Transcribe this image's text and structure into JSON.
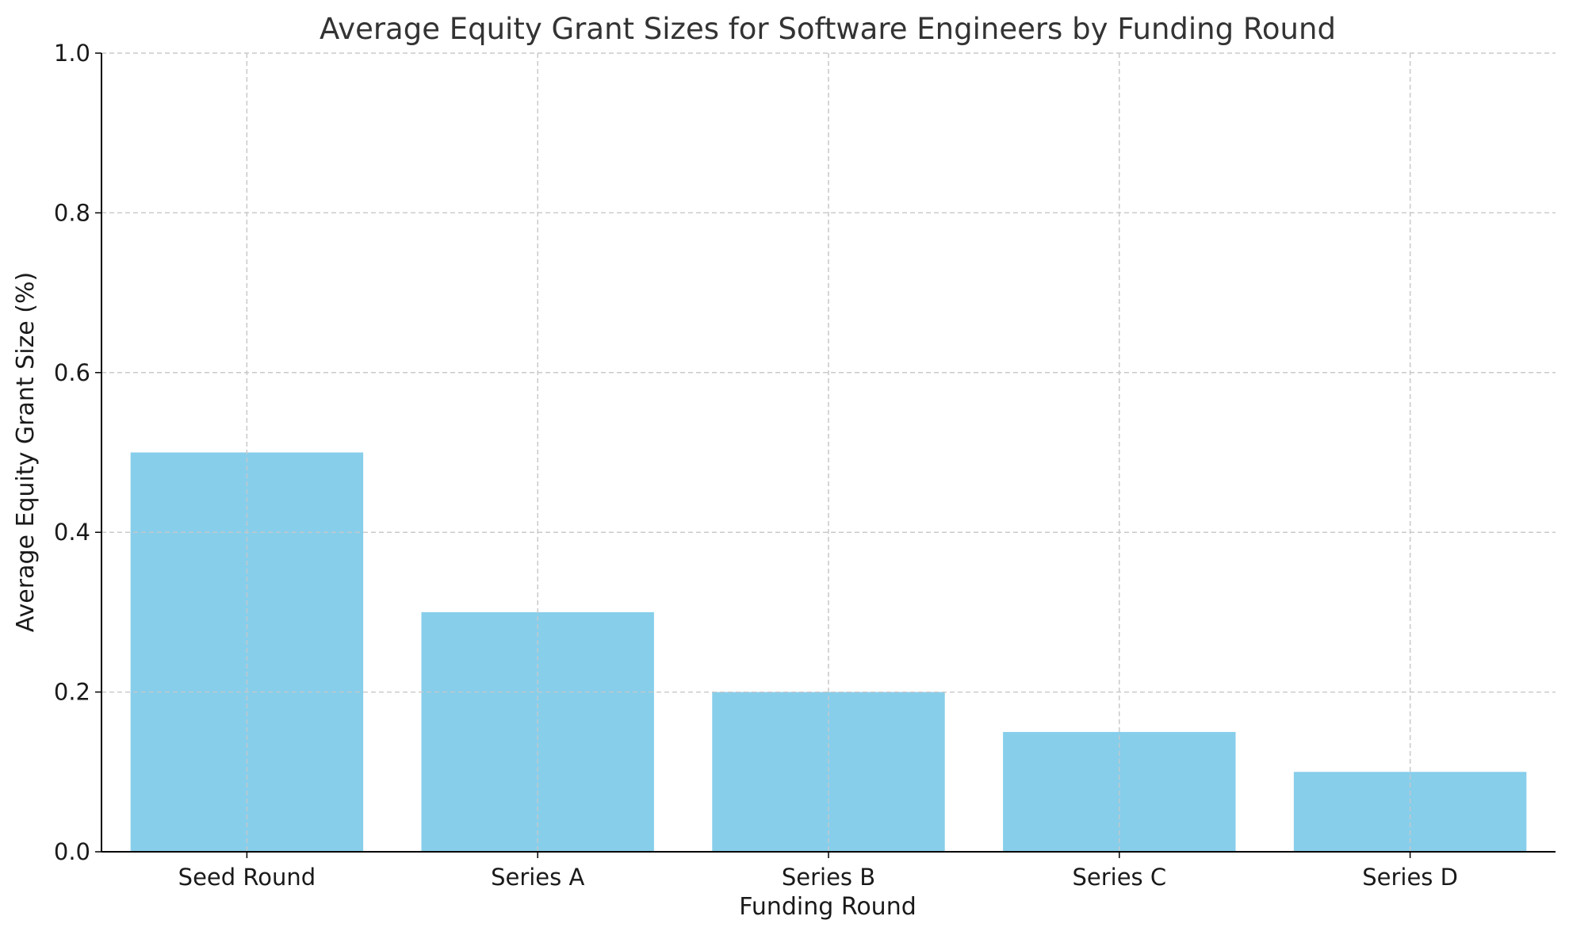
{
  "chart_data": {
    "type": "bar",
    "title": "Average Equity Grant Sizes for Software Engineers by Funding Round",
    "xlabel": "Funding Round",
    "ylabel": "Average Equity Grant Size (%)",
    "categories": [
      "Seed Round",
      "Series A",
      "Series B",
      "Series C",
      "Series D"
    ],
    "values": [
      0.5,
      0.3,
      0.2,
      0.15,
      0.1
    ],
    "ylim": [
      0,
      1.0
    ],
    "yticks": [
      "0.0",
      "0.2",
      "0.4",
      "0.6",
      "0.8",
      "1.0"
    ],
    "grid": true,
    "legend": "none",
    "colors": {
      "bar": "#87ceeb",
      "grid": "#c8c8c8",
      "axis": "#000000",
      "title": "#333333"
    }
  }
}
